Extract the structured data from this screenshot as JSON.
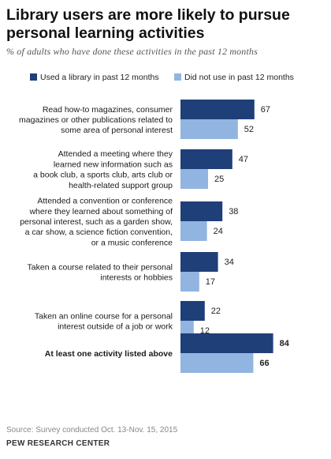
{
  "title": "Library users are more likely to pursue personal learning activities",
  "subtitle": "% of adults who have done these activities in the past 12 months",
  "source": "Source: Survey conducted Oct. 13-Nov. 15, 2015",
  "org": "PEW RESEARCH CENTER",
  "colors": {
    "series1": "#1f3f78",
    "series2": "#92b4e0",
    "text": "#1a1a1a"
  },
  "chart_data": {
    "type": "bar",
    "orientation": "horizontal",
    "legend_position": "top",
    "categories": [
      [
        "Read how-to magazines, consumer",
        "magazines or other publications related to",
        "some area of personal interest"
      ],
      [
        "Attended a meeting where they",
        "learned new information such as",
        "a book club, a sports club, arts club or",
        "health-related support group"
      ],
      [
        "Attended a convention or conference",
        "where they learned about something of",
        "personal interest, such as a garden show,",
        "a car show, a science fiction convention,",
        "or a music conference"
      ],
      [
        "Taken a course related to their personal",
        "interests or hobbies"
      ],
      [
        "Taken an online course for a personal",
        "interest outside of a job or work"
      ],
      [
        "At least one activity listed above"
      ]
    ],
    "bold_categories": [
      5
    ],
    "series": [
      {
        "name": "Used a library in past 12 months",
        "values": [
          67,
          47,
          38,
          34,
          22,
          84
        ]
      },
      {
        "name": "Did not use in past 12 months",
        "values": [
          52,
          25,
          24,
          17,
          12,
          66
        ]
      }
    ],
    "xlim": [
      0,
      100
    ]
  }
}
